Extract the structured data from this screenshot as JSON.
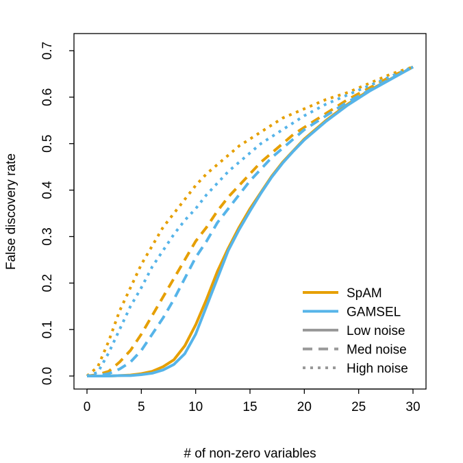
{
  "chart_data": {
    "type": "line",
    "title": "",
    "xlabel": "# of non-zero variables",
    "ylabel": "False discovery rate",
    "xlim": [
      0,
      30
    ],
    "ylim": [
      0,
      0.7
    ],
    "xticks": [
      "0",
      "5",
      "10",
      "15",
      "20",
      "25",
      "30"
    ],
    "yticks": [
      "0.0",
      "0.1",
      "0.2",
      "0.3",
      "0.4",
      "0.5",
      "0.6",
      "0.7"
    ],
    "grid": false,
    "legend_position": "bottom-right",
    "legend": [
      {
        "label": "SpAM",
        "color": "#E69F00",
        "style": "solid"
      },
      {
        "label": "GAMSEL",
        "color": "#56B4E9",
        "style": "solid"
      },
      {
        "label": "Low noise",
        "color": "#999999",
        "style": "solid"
      },
      {
        "label": "Med noise",
        "color": "#999999",
        "style": "dashed"
      },
      {
        "label": "High noise",
        "color": "#999999",
        "style": "dotted"
      }
    ],
    "x": [
      0,
      1,
      2,
      3,
      4,
      5,
      6,
      7,
      8,
      9,
      10,
      11,
      12,
      13,
      14,
      15,
      16,
      17,
      18,
      19,
      20,
      22,
      24,
      26,
      28,
      30
    ],
    "series": [
      {
        "method": "SpAM",
        "noise": "Low noise",
        "color": "#E69F00",
        "style": "solid",
        "values": [
          0,
          0,
          0,
          0.001,
          0.002,
          0.005,
          0.01,
          0.02,
          0.035,
          0.065,
          0.11,
          0.165,
          0.225,
          0.275,
          0.32,
          0.36,
          0.395,
          0.43,
          0.46,
          0.485,
          0.51,
          0.55,
          0.585,
          0.615,
          0.64,
          0.665
        ]
      },
      {
        "method": "GAMSEL",
        "noise": "Low noise",
        "color": "#56B4E9",
        "style": "solid",
        "values": [
          0,
          0,
          0,
          0.001,
          0.001,
          0.003,
          0.006,
          0.013,
          0.025,
          0.048,
          0.09,
          0.15,
          0.21,
          0.27,
          0.315,
          0.355,
          0.393,
          0.428,
          0.458,
          0.484,
          0.508,
          0.548,
          0.583,
          0.613,
          0.639,
          0.665
        ]
      },
      {
        "method": "SpAM",
        "noise": "Med noise",
        "color": "#E69F00",
        "style": "dashed",
        "values": [
          0,
          0.003,
          0.01,
          0.03,
          0.055,
          0.09,
          0.13,
          0.17,
          0.21,
          0.25,
          0.29,
          0.32,
          0.355,
          0.385,
          0.41,
          0.435,
          0.46,
          0.48,
          0.5,
          0.52,
          0.535,
          0.565,
          0.595,
          0.62,
          0.645,
          0.665
        ]
      },
      {
        "method": "GAMSEL",
        "noise": "Med noise",
        "color": "#56B4E9",
        "style": "dashed",
        "values": [
          0,
          0.001,
          0.005,
          0.015,
          0.03,
          0.055,
          0.09,
          0.125,
          0.165,
          0.21,
          0.255,
          0.29,
          0.33,
          0.36,
          0.39,
          0.42,
          0.445,
          0.47,
          0.49,
          0.51,
          0.53,
          0.56,
          0.59,
          0.615,
          0.64,
          0.665
        ]
      },
      {
        "method": "SpAM",
        "noise": "High noise",
        "color": "#E69F00",
        "style": "dotted",
        "values": [
          0,
          0.02,
          0.075,
          0.14,
          0.19,
          0.24,
          0.28,
          0.32,
          0.35,
          0.38,
          0.41,
          0.435,
          0.455,
          0.475,
          0.495,
          0.51,
          0.525,
          0.54,
          0.555,
          0.565,
          0.575,
          0.595,
          0.61,
          0.63,
          0.65,
          0.665
        ]
      },
      {
        "method": "GAMSEL",
        "noise": "High noise",
        "color": "#56B4E9",
        "style": "dotted",
        "values": [
          0,
          0.008,
          0.05,
          0.1,
          0.15,
          0.19,
          0.235,
          0.27,
          0.305,
          0.335,
          0.36,
          0.39,
          0.415,
          0.44,
          0.46,
          0.48,
          0.5,
          0.515,
          0.53,
          0.545,
          0.56,
          0.585,
          0.605,
          0.625,
          0.645,
          0.665
        ]
      }
    ]
  }
}
